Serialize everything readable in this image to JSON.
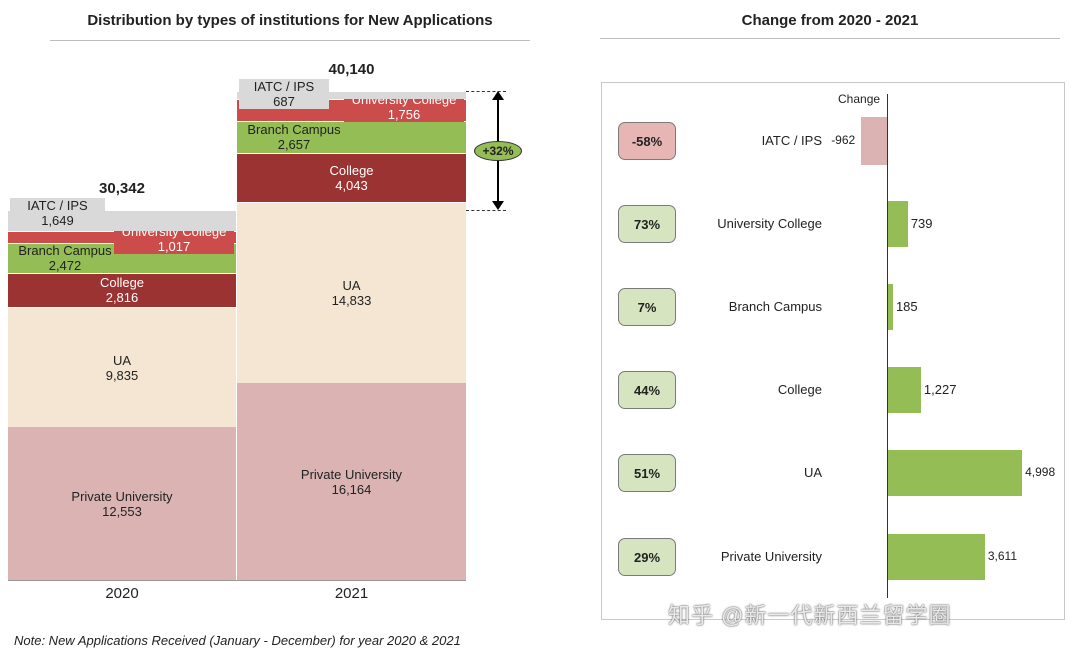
{
  "left": {
    "title": "Distribution by types of institutions for New Applications",
    "note": "Note: New Applications Received (January - December) for year 2020 & 2021"
  },
  "right": {
    "title": "Change from  2020 - 2021",
    "change_header": "Change"
  },
  "chart_data": [
    {
      "type": "bar",
      "stacked": true,
      "title": "Distribution by types of institutions for New Applications",
      "categories": [
        "2020",
        "2021"
      ],
      "totals": [
        "30,342",
        "40,140"
      ],
      "growth_label": "+32%",
      "series": [
        {
          "name": "Private University",
          "values": [
            12553,
            16164
          ],
          "labels": [
            "12,553",
            "16,164"
          ],
          "color": "#dbb3b3"
        },
        {
          "name": "UA",
          "values": [
            9835,
            14833
          ],
          "labels": [
            "9,835",
            "14,833"
          ],
          "color": "#f5e6d3"
        },
        {
          "name": "College",
          "values": [
            2816,
            4043
          ],
          "labels": [
            "2,816",
            "4,043"
          ],
          "color": "#9c3333"
        },
        {
          "name": "Branch Campus",
          "values": [
            2472,
            2657
          ],
          "labels": [
            "2,472",
            "2,657"
          ],
          "color": "#94bd55"
        },
        {
          "name": "University College",
          "values": [
            1017,
            1756
          ],
          "labels": [
            "1,017",
            "1,756"
          ],
          "color": "#cc4b4b"
        },
        {
          "name": "IATC / IPS",
          "values": [
            1649,
            687
          ],
          "labels": [
            "1,649",
            "687"
          ],
          "color": "#d9d9d9"
        }
      ]
    },
    {
      "type": "bar",
      "orientation": "horizontal",
      "title": "Change from  2020 - 2021",
      "categories": [
        "IATC / IPS",
        "University College",
        "Branch Campus",
        "College",
        "UA",
        "Private University"
      ],
      "values": [
        -962,
        739,
        185,
        1227,
        4998,
        3611
      ],
      "value_labels": [
        "-962",
        "739",
        "185",
        "1,227",
        "4,998",
        "3,611"
      ],
      "percent_labels": [
        "-58%",
        "73%",
        "7%",
        "44%",
        "51%",
        "29%"
      ],
      "colors": {
        "positive": "#94bd55",
        "negative": "#dbb3b3",
        "pct_positive_bg": "#d6e5c0",
        "pct_negative_bg": "#e8b5b5"
      }
    }
  ],
  "watermark": "知乎 @新一代新西兰留学圈"
}
